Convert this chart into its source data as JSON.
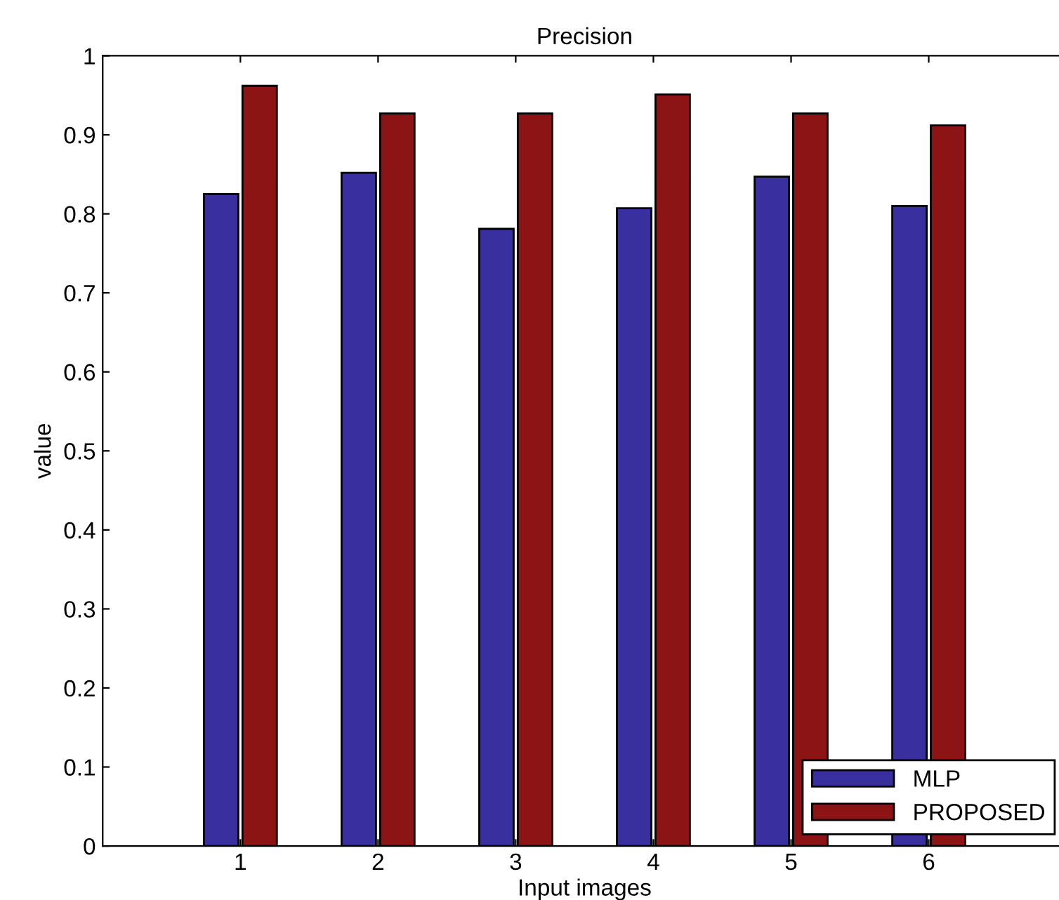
{
  "chart_data": {
    "type": "bar",
    "title": "Precision",
    "xlabel": "Input images",
    "ylabel": "value",
    "categories": [
      "1",
      "2",
      "3",
      "4",
      "5",
      "6"
    ],
    "series": [
      {
        "name": "MLP",
        "color": "#3a2f9e",
        "values": [
          0.825,
          0.852,
          0.781,
          0.807,
          0.847,
          0.81
        ]
      },
      {
        "name": "PROPOSED",
        "color": "#8c1414",
        "values": [
          0.962,
          0.927,
          0.927,
          0.951,
          0.927,
          0.912
        ]
      }
    ],
    "ylim": [
      0,
      1
    ],
    "yticks": [
      0,
      0.1,
      0.2,
      0.3,
      0.4,
      0.5,
      0.6,
      0.7,
      0.8,
      0.9,
      1
    ],
    "grid": false,
    "legend": "bottom right"
  }
}
